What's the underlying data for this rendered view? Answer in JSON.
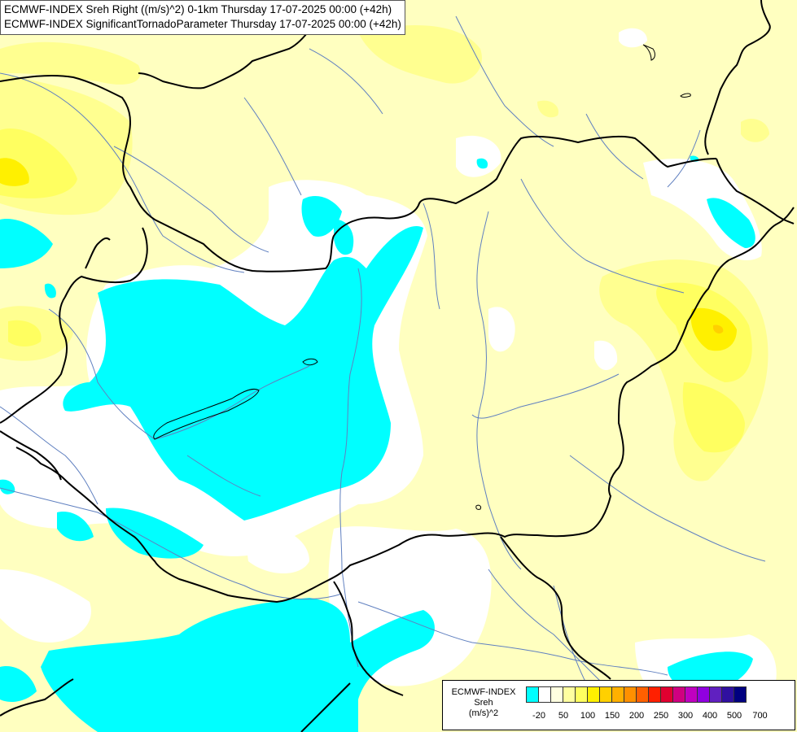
{
  "titles": {
    "line1": "ECMWF-INDEX Sreh Right ((m/s)^2) 0-1km Thursday 17-07-2025 00:00 (+42h)",
    "line2": "ECMWF-INDEX SignificantTornadoParameter Thursday 17-07-2025 00:00 (+42h)"
  },
  "legend": {
    "line1": "ECMWF-INDEX",
    "line2": "Sreh",
    "line3": "(m/s)^2",
    "colors": [
      "#00ffff",
      "#ffffff",
      "#ffffe0",
      "#ffffa0",
      "#ffff60",
      "#fff000",
      "#ffd000",
      "#ffb000",
      "#ff9000",
      "#ff6000",
      "#ff2000",
      "#e00030",
      "#d00080",
      "#c000c0",
      "#9000e0",
      "#6020c0",
      "#3010a0",
      "#000080"
    ],
    "ticks": [
      "-20",
      "50",
      "100",
      "150",
      "200",
      "250",
      "300",
      "400",
      "500",
      "700"
    ]
  },
  "map_colors": {
    "background": "#ffffc0",
    "cyan": "#00ffff",
    "white": "#ffffff",
    "yellow_light": "#ffff90",
    "yellow_mid": "#ffff60",
    "yellow_strong": "#fff000",
    "orange": "#ffd000",
    "border": "#000000",
    "river": "#6080c0"
  }
}
